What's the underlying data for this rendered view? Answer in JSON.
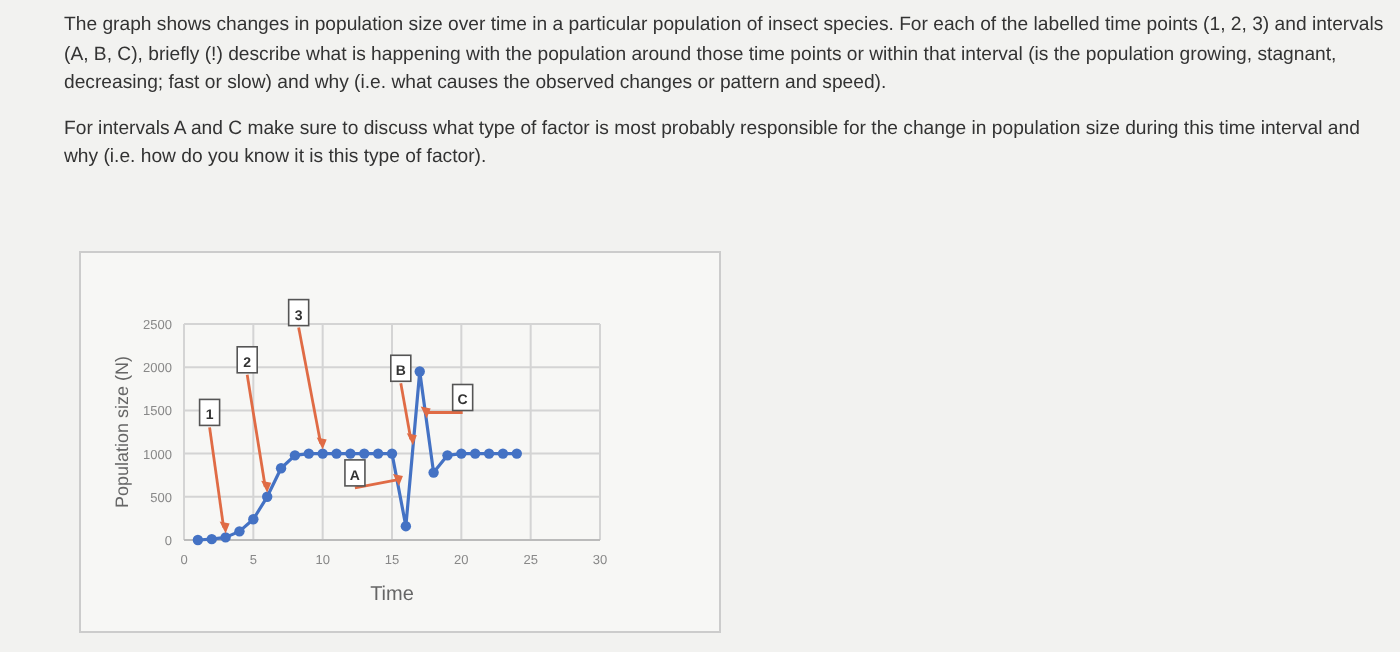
{
  "chart_data": {
    "type": "line",
    "xlabel": "Time",
    "ylabel": "Population size (N)",
    "annotations": [
      "The graph shows changes in population size over time in a particular population of insect species. For each of the labelled time points (1, 2, 3) and intervals (A, B, C), briefly (!) describe what is happening with the population around those time points or within that interval (is the population growing, stagnant, decreasing; fast or slow) and why (i.e. what causes the observed changes or pattern and speed).",
      "For intervals A and C make sure to discuss what type of factor is most probably responsible for the change in population size during this time interval and why (i.e. how do you know it is this type of factor).",
      {
        "text": "1",
        "x": 3,
        "y": 30
      },
      {
        "text": "2",
        "x": 6,
        "y": 500
      },
      {
        "text": "3",
        "x": 10,
        "y": 1000
      },
      {
        "text": "A",
        "x": 15.5,
        "y": 580
      },
      {
        "text": "B",
        "x": 16.5,
        "y": 1050
      },
      {
        "text": "C",
        "x": 17.5,
        "y": 1360
      }
    ],
    "x": [
      1,
      2,
      3,
      4,
      5,
      6,
      7,
      8,
      9,
      10,
      11,
      12,
      13,
      14,
      15,
      16,
      17,
      18,
      19,
      20,
      21,
      22,
      23,
      24
    ],
    "series": [
      {
        "color": "#4472c4",
        "values": [
          0,
          10,
          30,
          100,
          240,
          500,
          830,
          980,
          1000,
          1000,
          1000,
          1000,
          1000,
          1000,
          1000,
          160,
          1950,
          780,
          980,
          1000,
          1000,
          1000,
          1000,
          1000
        ]
      }
    ],
    "xlim": [
      0,
      30
    ],
    "xticks": [
      0,
      5,
      10,
      15,
      20,
      25,
      30
    ],
    "ylim": [
      0,
      2500
    ],
    "yticks": [
      0,
      500,
      1000,
      1500,
      2000,
      2500
    ],
    "grid": true,
    "marker": "circle",
    "line_style": "solid"
  }
}
